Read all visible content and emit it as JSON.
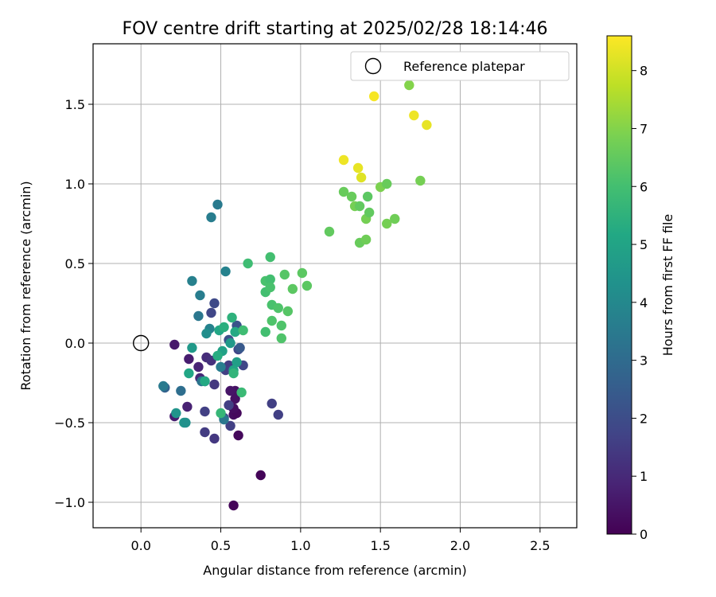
{
  "chart_data": {
    "type": "scatter",
    "title": "FOV centre drift starting at 2025/02/28 18:14:46",
    "xlabel": "Angular distance from reference (arcmin)",
    "ylabel": "Rotation from reference (arcmin)",
    "xlim": [
      -0.3,
      2.73
    ],
    "ylim": [
      -1.16,
      1.88
    ],
    "xticks": [
      0.0,
      0.5,
      1.0,
      1.5,
      2.0,
      2.5
    ],
    "xtick_labels": [
      "0.0",
      "0.5",
      "1.0",
      "1.5",
      "2.0",
      "2.5"
    ],
    "yticks": [
      -1.0,
      -0.5,
      0.0,
      0.5,
      1.0,
      1.5
    ],
    "ytick_labels": [
      "−1.0",
      "−0.5",
      "0.0",
      "0.5",
      "1.0",
      "1.5"
    ],
    "grid": true,
    "legend": {
      "label": "Reference platepar",
      "placement": "top-right"
    },
    "reference_point": {
      "x": 0.0,
      "y": 0.0
    },
    "colorbar": {
      "label": "Hours from first FF file",
      "colormap": "viridis",
      "range": [
        0,
        8.6
      ],
      "ticks": [
        0,
        1,
        2,
        3,
        4,
        5,
        6,
        7,
        8
      ],
      "tick_labels": [
        "0",
        "1",
        "2",
        "3",
        "4",
        "5",
        "6",
        "7",
        "8"
      ]
    },
    "points": [
      {
        "x": 0.58,
        "y": -1.02,
        "c": 0.1
      },
      {
        "x": 0.75,
        "y": -0.83,
        "c": 0.1
      },
      {
        "x": 0.61,
        "y": -0.58,
        "c": 0.2
      },
      {
        "x": 0.58,
        "y": -0.45,
        "c": 0.3
      },
      {
        "x": 0.6,
        "y": -0.44,
        "c": 0.2
      },
      {
        "x": 0.58,
        "y": -0.41,
        "c": 0.3
      },
      {
        "x": 0.59,
        "y": -0.35,
        "c": 0.4
      },
      {
        "x": 0.59,
        "y": -0.3,
        "c": 0.4
      },
      {
        "x": 0.56,
        "y": -0.3,
        "c": 0.5
      },
      {
        "x": 0.21,
        "y": -0.01,
        "c": 0.6
      },
      {
        "x": 0.21,
        "y": -0.46,
        "c": 0.7
      },
      {
        "x": 0.29,
        "y": -0.4,
        "c": 0.8
      },
      {
        "x": 0.3,
        "y": -0.1,
        "c": 0.7
      },
      {
        "x": 0.36,
        "y": -0.15,
        "c": 0.9
      },
      {
        "x": 0.37,
        "y": -0.22,
        "c": 1.0
      },
      {
        "x": 0.41,
        "y": -0.09,
        "c": 1.1
      },
      {
        "x": 0.44,
        "y": -0.11,
        "c": 1.2
      },
      {
        "x": 0.4,
        "y": -0.24,
        "c": 1.3
      },
      {
        "x": 0.46,
        "y": -0.26,
        "c": 1.4
      },
      {
        "x": 0.4,
        "y": -0.56,
        "c": 1.5
      },
      {
        "x": 0.46,
        "y": -0.6,
        "c": 1.4
      },
      {
        "x": 0.4,
        "y": -0.43,
        "c": 1.6
      },
      {
        "x": 0.52,
        "y": -0.47,
        "c": 1.7
      },
      {
        "x": 0.56,
        "y": -0.52,
        "c": 1.6
      },
      {
        "x": 0.55,
        "y": -0.39,
        "c": 1.6
      },
      {
        "x": 0.53,
        "y": -0.17,
        "c": 1.6
      },
      {
        "x": 0.55,
        "y": -0.14,
        "c": 1.5
      },
      {
        "x": 0.57,
        "y": -0.17,
        "c": 1.7
      },
      {
        "x": 0.64,
        "y": -0.14,
        "c": 1.8
      },
      {
        "x": 0.61,
        "y": -0.04,
        "c": 1.8
      },
      {
        "x": 0.82,
        "y": -0.38,
        "c": 1.6
      },
      {
        "x": 0.86,
        "y": -0.45,
        "c": 1.6
      },
      {
        "x": 0.44,
        "y": 0.19,
        "c": 1.8
      },
      {
        "x": 0.46,
        "y": 0.25,
        "c": 1.9
      },
      {
        "x": 0.55,
        "y": 0.02,
        "c": 2.1
      },
      {
        "x": 0.6,
        "y": 0.11,
        "c": 2.2
      },
      {
        "x": 0.62,
        "y": -0.03,
        "c": 2.4
      },
      {
        "x": 0.15,
        "y": -0.28,
        "c": 2.7
      },
      {
        "x": 0.25,
        "y": -0.3,
        "c": 3.1
      },
      {
        "x": 0.38,
        "y": -0.24,
        "c": 3.3
      },
      {
        "x": 0.52,
        "y": -0.48,
        "c": 3.4
      },
      {
        "x": 0.5,
        "y": -0.15,
        "c": 3.6
      },
      {
        "x": 0.14,
        "y": -0.27,
        "c": 3.5
      },
      {
        "x": 0.36,
        "y": 0.17,
        "c": 3.4
      },
      {
        "x": 0.37,
        "y": 0.3,
        "c": 3.6
      },
      {
        "x": 0.32,
        "y": 0.39,
        "c": 3.7
      },
      {
        "x": 0.44,
        "y": 0.79,
        "c": 3.6
      },
      {
        "x": 0.48,
        "y": 0.87,
        "c": 3.5
      },
      {
        "x": 0.53,
        "y": 0.45,
        "c": 3.8
      },
      {
        "x": 0.43,
        "y": 0.09,
        "c": 3.8
      },
      {
        "x": 0.41,
        "y": 0.06,
        "c": 4.2
      },
      {
        "x": 0.22,
        "y": -0.44,
        "c": 4.4
      },
      {
        "x": 0.27,
        "y": -0.5,
        "c": 4.5
      },
      {
        "x": 0.28,
        "y": -0.5,
        "c": 4.3
      },
      {
        "x": 0.32,
        "y": -0.03,
        "c": 4.6
      },
      {
        "x": 0.51,
        "y": -0.05,
        "c": 4.9
      },
      {
        "x": 0.56,
        "y": 0.0,
        "c": 4.6
      },
      {
        "x": 0.6,
        "y": -0.12,
        "c": 4.8
      },
      {
        "x": 0.58,
        "y": -0.17,
        "c": 5.0
      },
      {
        "x": 0.3,
        "y": -0.19,
        "c": 5.1
      },
      {
        "x": 0.4,
        "y": -0.24,
        "c": 5.2
      },
      {
        "x": 0.49,
        "y": 0.08,
        "c": 5.1
      },
      {
        "x": 0.52,
        "y": 0.1,
        "c": 5.4
      },
      {
        "x": 0.57,
        "y": 0.16,
        "c": 5.5
      },
      {
        "x": 0.59,
        "y": 0.07,
        "c": 5.2
      },
      {
        "x": 0.48,
        "y": -0.08,
        "c": 5.3
      },
      {
        "x": 0.58,
        "y": -0.19,
        "c": 5.6
      },
      {
        "x": 0.5,
        "y": -0.44,
        "c": 5.7
      },
      {
        "x": 0.63,
        "y": -0.31,
        "c": 5.8
      },
      {
        "x": 0.64,
        "y": 0.08,
        "c": 5.9
      },
      {
        "x": 0.67,
        "y": 0.5,
        "c": 5.9
      },
      {
        "x": 0.78,
        "y": 0.07,
        "c": 6.0
      },
      {
        "x": 0.78,
        "y": 0.32,
        "c": 6.0
      },
      {
        "x": 0.78,
        "y": 0.39,
        "c": 6.1
      },
      {
        "x": 0.81,
        "y": 0.4,
        "c": 6.0
      },
      {
        "x": 0.81,
        "y": 0.35,
        "c": 6.1
      },
      {
        "x": 0.81,
        "y": 0.54,
        "c": 6.0
      },
      {
        "x": 0.82,
        "y": 0.24,
        "c": 6.1
      },
      {
        "x": 0.86,
        "y": 0.22,
        "c": 6.2
      },
      {
        "x": 0.82,
        "y": 0.14,
        "c": 6.2
      },
      {
        "x": 0.88,
        "y": 0.11,
        "c": 6.2
      },
      {
        "x": 0.88,
        "y": 0.03,
        "c": 6.2
      },
      {
        "x": 0.9,
        "y": 0.43,
        "c": 6.3
      },
      {
        "x": 0.92,
        "y": 0.2,
        "c": 6.3
      },
      {
        "x": 0.95,
        "y": 0.34,
        "c": 6.4
      },
      {
        "x": 1.01,
        "y": 0.44,
        "c": 6.4
      },
      {
        "x": 1.04,
        "y": 0.36,
        "c": 6.4
      },
      {
        "x": 1.18,
        "y": 0.7,
        "c": 6.5
      },
      {
        "x": 1.27,
        "y": 0.95,
        "c": 6.6
      },
      {
        "x": 1.32,
        "y": 0.92,
        "c": 6.6
      },
      {
        "x": 1.34,
        "y": 0.86,
        "c": 6.8
      },
      {
        "x": 1.37,
        "y": 0.86,
        "c": 6.5
      },
      {
        "x": 1.37,
        "y": 0.63,
        "c": 6.6
      },
      {
        "x": 1.41,
        "y": 0.65,
        "c": 6.7
      },
      {
        "x": 1.41,
        "y": 0.78,
        "c": 6.8
      },
      {
        "x": 1.43,
        "y": 0.82,
        "c": 6.5
      },
      {
        "x": 1.42,
        "y": 0.92,
        "c": 6.4
      },
      {
        "x": 1.5,
        "y": 0.98,
        "c": 6.9
      },
      {
        "x": 1.54,
        "y": 1.0,
        "c": 6.6
      },
      {
        "x": 1.54,
        "y": 0.75,
        "c": 6.8
      },
      {
        "x": 1.59,
        "y": 0.78,
        "c": 6.7
      },
      {
        "x": 1.75,
        "y": 1.02,
        "c": 6.8
      },
      {
        "x": 1.68,
        "y": 1.62,
        "c": 7.0
      },
      {
        "x": 1.27,
        "y": 1.15,
        "c": 8.4
      },
      {
        "x": 1.36,
        "y": 1.1,
        "c": 8.3
      },
      {
        "x": 1.38,
        "y": 1.04,
        "c": 8.2
      },
      {
        "x": 1.46,
        "y": 1.55,
        "c": 8.5
      },
      {
        "x": 1.71,
        "y": 1.43,
        "c": 8.4
      },
      {
        "x": 1.79,
        "y": 1.37,
        "c": 8.3
      }
    ]
  }
}
